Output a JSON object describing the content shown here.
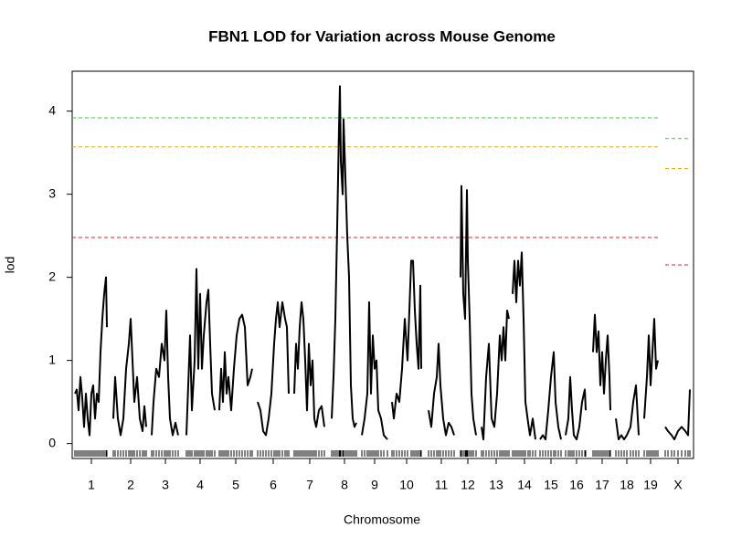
{
  "chart_data": {
    "type": "line",
    "title": "FBN1 LOD for Variation across Mouse Genome",
    "xlabel": "Chromosome",
    "ylabel": "lod",
    "xlim": [
      79,
      759
    ],
    "ylim": [
      -0.18,
      4.48
    ],
    "yticks": [
      0,
      1,
      2,
      3,
      4
    ],
    "xticks": [
      {
        "value": 100,
        "label": "1"
      },
      {
        "value": 143,
        "label": "2"
      },
      {
        "value": 181,
        "label": "3"
      },
      {
        "value": 219,
        "label": "4"
      },
      {
        "value": 258,
        "label": "5"
      },
      {
        "value": 299,
        "label": "6"
      },
      {
        "value": 339,
        "label": "7"
      },
      {
        "value": 377,
        "label": "8"
      },
      {
        "value": 410,
        "label": "9"
      },
      {
        "value": 445,
        "label": "10"
      },
      {
        "value": 483,
        "label": "11"
      },
      {
        "value": 512,
        "label": "12"
      },
      {
        "value": 543,
        "label": "13"
      },
      {
        "value": 574,
        "label": "14"
      },
      {
        "value": 603,
        "label": "15"
      },
      {
        "value": 631,
        "label": "16"
      },
      {
        "value": 659,
        "label": "17"
      },
      {
        "value": 686,
        "label": "18"
      },
      {
        "value": 712,
        "label": "19"
      },
      {
        "value": 742,
        "label": "X"
      }
    ],
    "color": "#000000",
    "x": [
      82,
      84,
      86,
      88,
      90,
      92,
      94,
      96,
      98,
      100,
      102,
      104,
      106,
      108,
      110,
      112,
      114,
      116,
      117,
      120,
      124,
      126,
      129,
      132,
      135,
      138,
      141,
      143,
      145,
      147,
      150,
      153,
      156,
      158,
      160,
      163,
      166,
      168,
      171,
      174,
      177,
      180,
      182,
      184,
      186,
      189,
      192,
      195,
      200,
      204,
      206,
      208,
      210,
      213,
      215,
      217,
      219,
      221,
      223,
      226,
      228,
      230,
      232,
      235,
      238,
      240,
      242,
      244,
      246,
      248,
      250,
      253,
      256,
      259,
      262,
      265,
      268,
      271,
      274,
      276,
      279,
      282,
      285,
      288,
      291,
      294,
      297,
      300,
      302,
      304,
      306,
      309,
      312,
      314,
      316,
      319,
      322,
      324,
      326,
      328,
      330,
      332,
      334,
      336,
      338,
      340,
      342,
      344,
      346,
      349,
      352,
      355,
      359,
      363,
      365,
      367,
      369,
      371,
      372,
      373,
      375,
      376,
      378,
      380,
      382,
      384,
      386,
      388,
      390,
      393,
      396,
      399,
      402,
      404,
      406,
      408,
      410,
      412,
      414,
      417,
      420,
      424,
      426,
      429,
      431,
      434,
      437,
      440,
      443,
      446,
      450,
      452,
      454,
      456,
      458,
      460,
      461,
      465,
      469,
      472,
      475,
      478,
      480,
      482,
      485,
      488,
      491,
      494,
      497,
      500,
      504,
      505,
      507,
      509,
      510,
      511,
      512,
      514,
      516,
      518,
      521,
      524,
      527,
      529,
      532,
      535,
      538,
      541,
      544,
      547,
      549,
      551,
      553,
      555,
      557,
      559,
      561,
      563,
      565,
      567,
      569,
      571,
      573,
      575,
      578,
      580,
      583,
      586,
      588,
      591,
      594,
      597,
      600,
      603,
      606,
      608,
      611,
      614,
      617,
      619,
      622,
      624,
      626,
      628,
      631,
      634,
      637,
      640,
      641,
      645,
      649,
      651,
      653,
      655,
      657,
      659,
      661,
      663,
      665,
      667,
      668,
      671,
      674,
      677,
      680,
      683,
      686,
      690,
      693,
      696,
      699,
      702,
      705,
      708,
      710,
      712,
      714,
      716,
      718,
      720,
      724,
      728,
      731,
      735,
      738,
      742,
      746,
      750,
      753,
      755
    ],
    "values": [
      0.6,
      0.65,
      0.4,
      0.8,
      0.55,
      0.2,
      0.6,
      0.3,
      0.1,
      0.6,
      0.7,
      0.3,
      0.6,
      0.5,
      1.1,
      1.5,
      1.8,
      2.0,
      1.4,
      null,
      0.3,
      0.8,
      0.3,
      0.1,
      0.3,
      0.9,
      1.2,
      1.5,
      1.0,
      0.5,
      0.8,
      0.3,
      0.15,
      0.45,
      0.2,
      null,
      0.1,
      0.5,
      0.9,
      0.8,
      1.2,
      1.0,
      1.6,
      0.8,
      0.3,
      0.1,
      0.25,
      0.1,
      null,
      0.1,
      0.7,
      1.3,
      0.4,
      1.0,
      2.1,
      0.9,
      1.8,
      0.9,
      1.3,
      1.7,
      1.85,
      1.2,
      0.6,
      0.4,
      null,
      0.4,
      0.9,
      0.5,
      1.1,
      0.6,
      0.8,
      0.4,
      0.9,
      1.3,
      1.5,
      1.55,
      1.4,
      0.7,
      0.8,
      0.9,
      null,
      0.5,
      0.4,
      0.15,
      0.1,
      0.3,
      0.6,
      1.2,
      1.5,
      1.7,
      1.4,
      1.7,
      1.5,
      1.4,
      0.6,
      null,
      0.6,
      1.2,
      0.9,
      1.4,
      1.7,
      1.5,
      1.0,
      0.4,
      1.2,
      0.7,
      1.0,
      0.3,
      0.2,
      0.4,
      0.45,
      0.2,
      null,
      0.3,
      0.8,
      1.5,
      2.6,
      3.8,
      4.3,
      3.4,
      3.0,
      3.9,
      3.2,
      2.5,
      2.0,
      0.7,
      0.3,
      0.2,
      0.25,
      null,
      0.1,
      0.3,
      0.6,
      1.7,
      0.6,
      1.3,
      0.9,
      1.0,
      0.4,
      0.3,
      0.1,
      0.05,
      null,
      0.5,
      0.3,
      0.6,
      0.5,
      0.9,
      1.5,
      1.0,
      2.2,
      2.2,
      1.6,
      1.2,
      0.9,
      1.9,
      0.9,
      null,
      0.4,
      0.2,
      0.6,
      0.8,
      1.2,
      0.7,
      0.3,
      0.1,
      0.25,
      0.2,
      0.1,
      null,
      2.0,
      3.1,
      1.8,
      1.5,
      2.3,
      3.05,
      2.2,
      1.5,
      0.6,
      0.3,
      0.1,
      null,
      0.2,
      0.05,
      0.8,
      1.2,
      0.3,
      0.2,
      0.6,
      1.3,
      1.0,
      1.4,
      1.0,
      1.6,
      1.5,
      null,
      1.8,
      2.2,
      1.7,
      2.2,
      1.9,
      2.3,
      1.5,
      0.5,
      0.25,
      0.1,
      0.3,
      0.05,
      null,
      0.05,
      0.1,
      0.05,
      0.4,
      0.8,
      1.1,
      0.5,
      0.2,
      0.05,
      null,
      0.1,
      0.3,
      0.8,
      0.4,
      0.1,
      0.05,
      0.2,
      0.5,
      0.65,
      0.4,
      null,
      1.1,
      1.55,
      1.1,
      1.35,
      0.7,
      1.1,
      0.6,
      1.0,
      1.3,
      0.8,
      0.4,
      null,
      0.3,
      0.05,
      0.1,
      0.05,
      0.1,
      0.2,
      0.5,
      0.7,
      0.1,
      null,
      0.3,
      0.8,
      1.3,
      0.7,
      1.1,
      1.5,
      0.9,
      1.0,
      null,
      0.2,
      0.15,
      0.1,
      0.05,
      0.15,
      0.2,
      0.15,
      0.1,
      0.65
    ],
    "thresholds": [
      {
        "color": "#22dd22",
        "values": [
          3.92,
          3.67
        ]
      },
      {
        "color": "#ffa500",
        "values": [
          3.57,
          3.31
        ]
      },
      {
        "color": "#ee2222",
        "values": [
          2.48,
          2.15
        ]
      }
    ]
  }
}
